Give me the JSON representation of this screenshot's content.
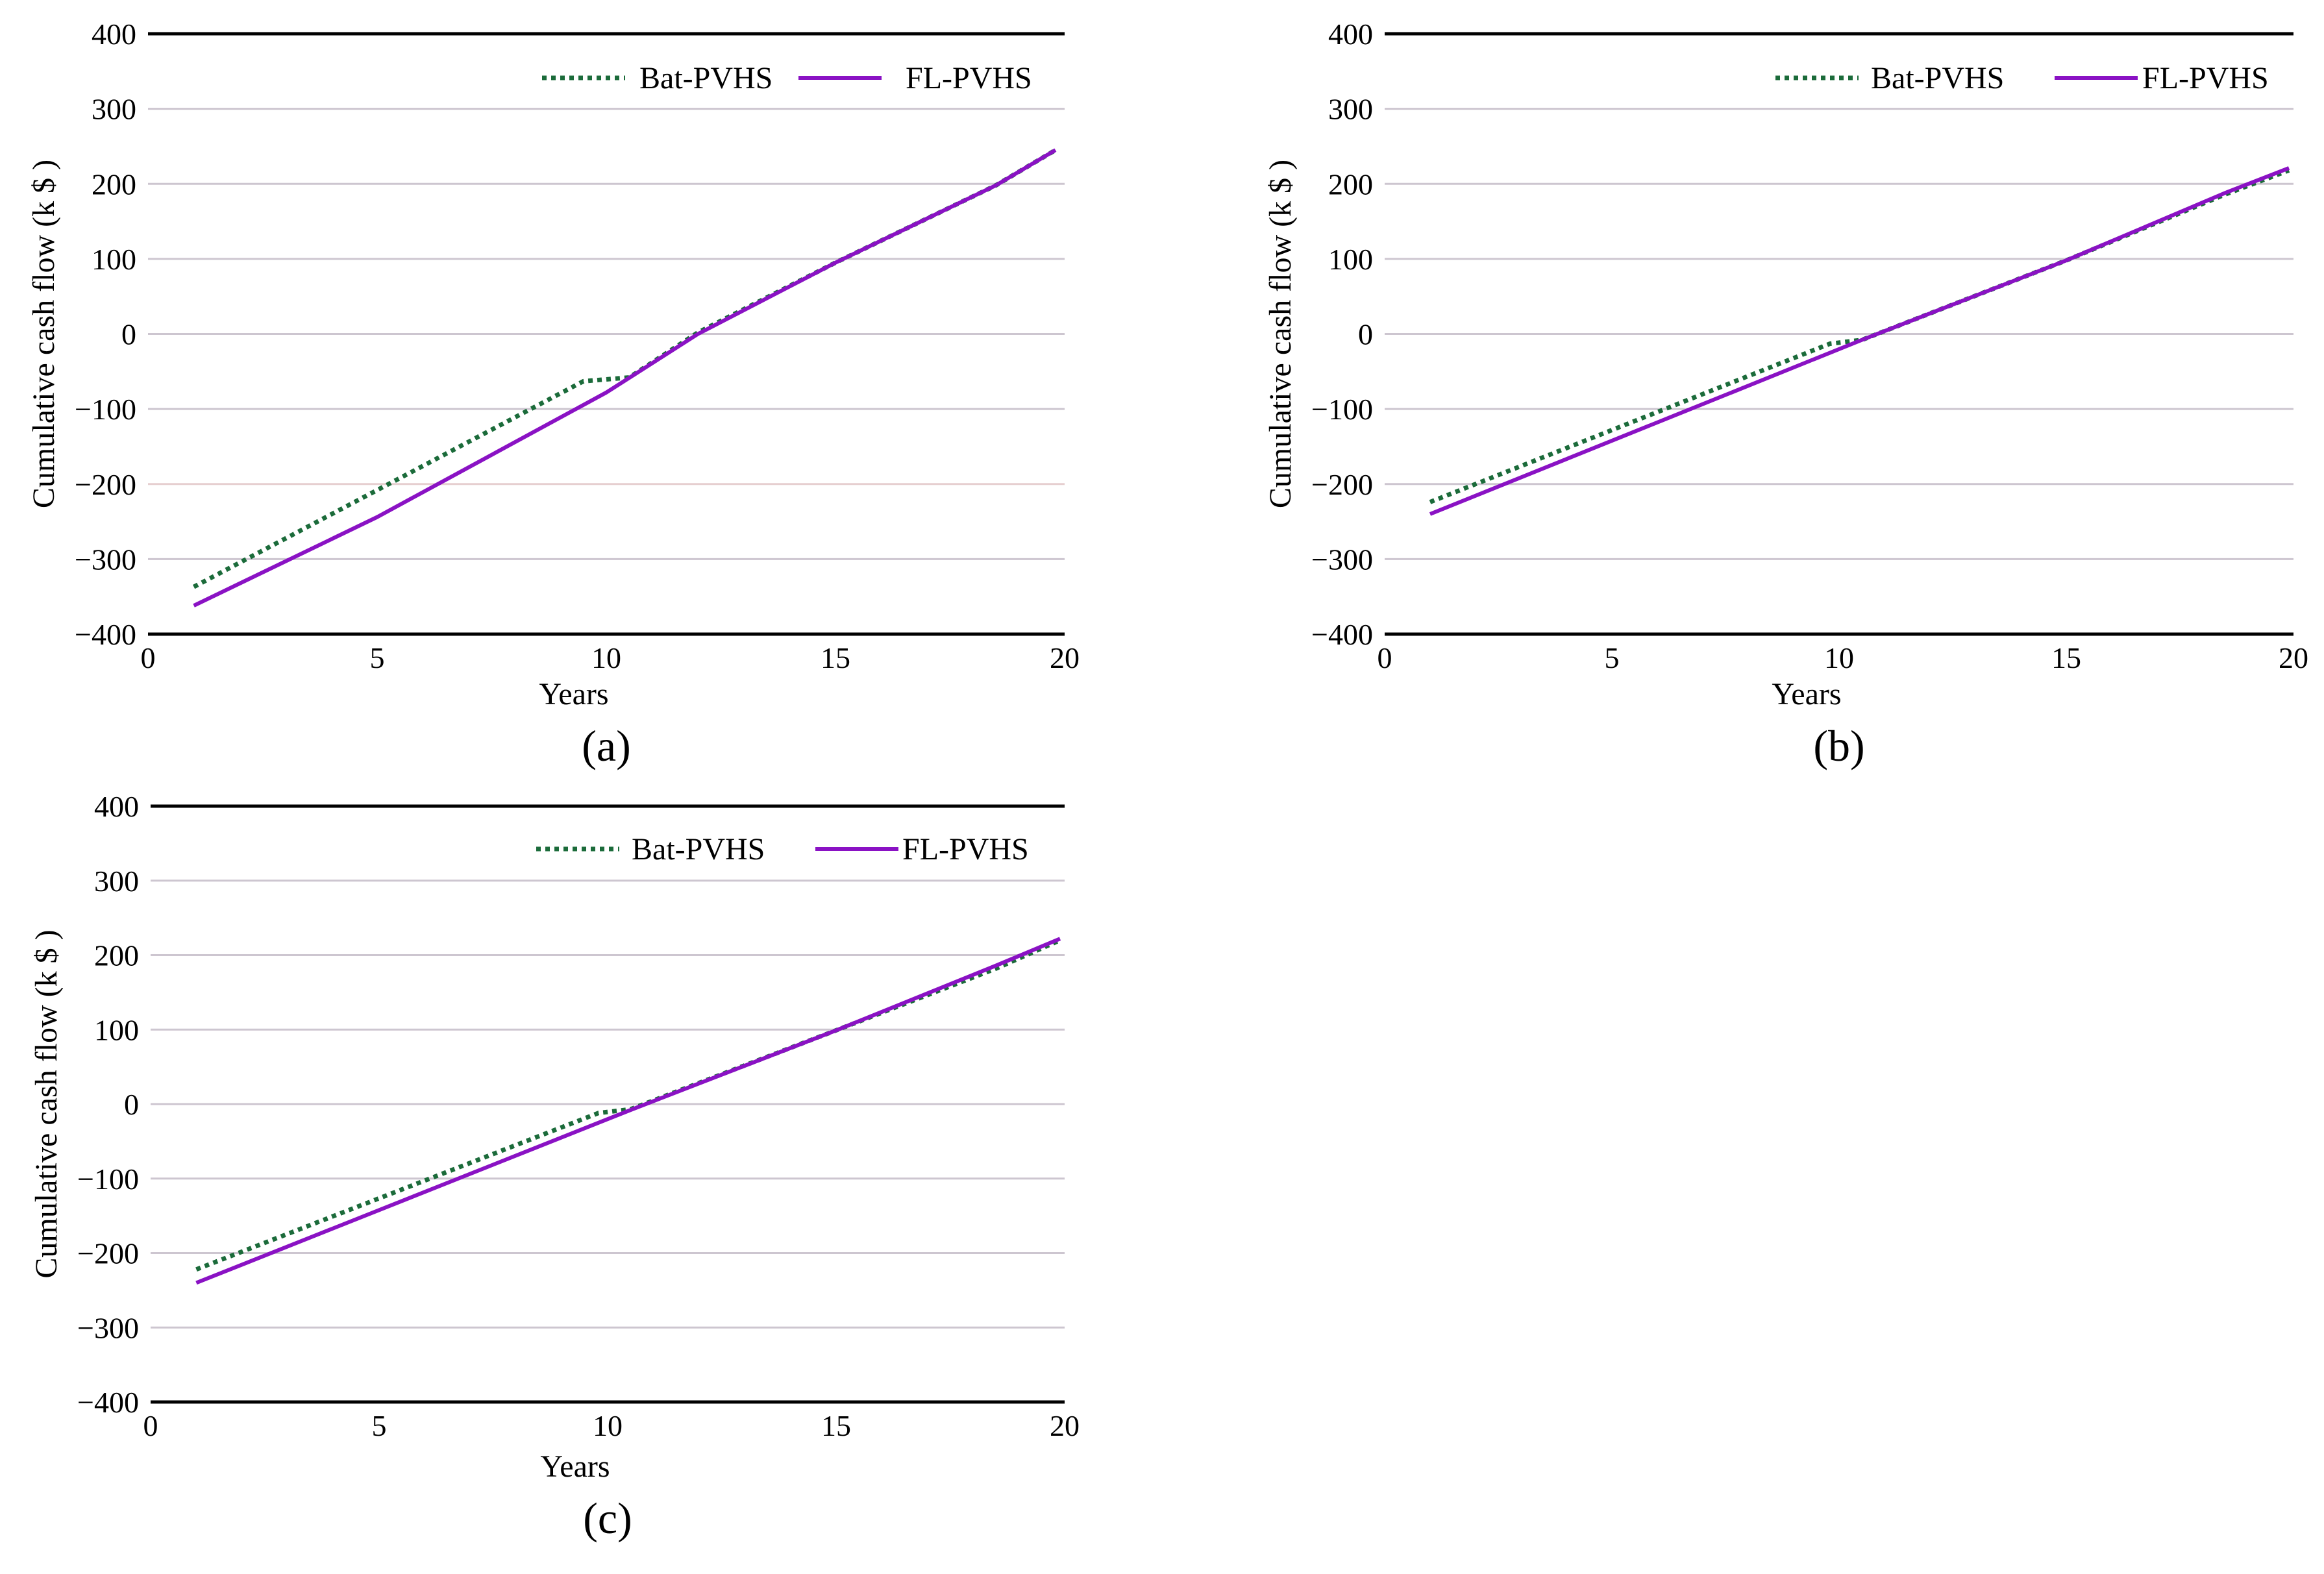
{
  "chart_data": [
    {
      "panel_label": "(a)",
      "type": "line",
      "title": "",
      "xlabel": "Years",
      "ylabel": "Cumulative cash flow (k $ )",
      "xlim": [
        0,
        20
      ],
      "ylim": [
        -400,
        400
      ],
      "xticks": [
        "0",
        "5",
        "10",
        "15",
        "20"
      ],
      "yticks": [
        "−400",
        "−300",
        "−200",
        "−100",
        "0",
        "100",
        "200",
        "300",
        "400"
      ],
      "grid": true,
      "legend_position": "top-right",
      "series": [
        {
          "name": "Bat-PVHS",
          "color": "#1b6b3a",
          "style": "dotted",
          "x": [
            1,
            9.5,
            10.5,
            12,
            15,
            18.5,
            19.8
          ],
          "y": [
            -337,
            -63,
            -58,
            2,
            95,
            198,
            245
          ]
        },
        {
          "name": "FL-PVHS",
          "color": "#8a12c4",
          "style": "solid",
          "x": [
            1,
            5,
            10,
            12,
            15,
            18.5,
            19.8
          ],
          "y": [
            -362,
            -244,
            -78,
            0,
            95,
            198,
            245
          ]
        }
      ]
    },
    {
      "panel_label": "(b)",
      "type": "line",
      "title": "",
      "xlabel": "Years",
      "ylabel": "Cumulative cash flow (k $ )",
      "xlim": [
        0,
        20
      ],
      "ylim": [
        -400,
        400
      ],
      "xticks": [
        "0",
        "5",
        "10",
        "15",
        "20"
      ],
      "yticks": [
        "−400",
        "−300",
        "−200",
        "−100",
        "0",
        "100",
        "200",
        "300",
        "400"
      ],
      "grid": true,
      "legend_position": "top-right",
      "series": [
        {
          "name": "Bat-PVHS",
          "color": "#1b6b3a",
          "style": "dotted",
          "x": [
            1,
            9.8,
            10.5,
            15,
            18.5,
            19.9
          ],
          "y": [
            -224,
            -13,
            -8,
            98,
            186,
            218
          ]
        },
        {
          "name": "FL-PVHS",
          "color": "#8a12c4",
          "style": "solid",
          "x": [
            1,
            10.5,
            15,
            18.5,
            19.9
          ],
          "y": [
            -240,
            -8,
            98,
            188,
            221
          ]
        }
      ]
    },
    {
      "panel_label": "(c)",
      "type": "line",
      "title": "",
      "xlabel": "Years",
      "ylabel": "Cumulative cash flow (k $ )",
      "xlim": [
        0,
        20
      ],
      "ylim": [
        -400,
        400
      ],
      "xticks": [
        "0",
        "5",
        "10",
        "15",
        "20"
      ],
      "yticks": [
        "−400",
        "−300",
        "−200",
        "−100",
        "0",
        "100",
        "200",
        "300",
        "400"
      ],
      "grid": true,
      "legend_position": "top-right",
      "series": [
        {
          "name": "Bat-PVHS",
          "color": "#1b6b3a",
          "style": "dotted",
          "x": [
            1,
            9.8,
            10.5,
            15,
            18.5,
            19.9
          ],
          "y": [
            -222,
            -12,
            -7,
            99,
            182,
            220
          ]
        },
        {
          "name": "FL-PVHS",
          "color": "#8a12c4",
          "style": "solid",
          "x": [
            1,
            10.5,
            15,
            18.5,
            19.9
          ],
          "y": [
            -240,
            -8,
            99,
            186,
            222
          ]
        }
      ]
    }
  ]
}
